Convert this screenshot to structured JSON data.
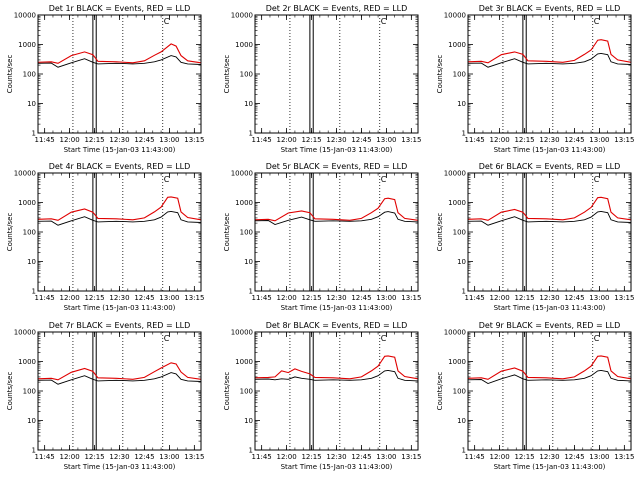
{
  "colors": {
    "background": "#ffffff",
    "axes": "#000000",
    "events": "#000000",
    "lld": "#e00000"
  },
  "chart_data": [
    {
      "type": "line",
      "title": "Det 1r BLACK = Events, RED = LLD",
      "xlabel": "Start Time (15-Jan-03 11:43:00)",
      "ylabel": "Counts/sec",
      "yscale": "log",
      "ylim": [
        1,
        10000
      ],
      "xlim_minutes": [
        -2,
        96
      ],
      "x_ticks": [
        "11:45",
        "12:00",
        "12:15",
        "12:30",
        "12:45",
        "13:00",
        "13:15"
      ],
      "y_ticks": [
        "1",
        "10",
        "100",
        "1000",
        "10000"
      ],
      "markers": [
        "C"
      ],
      "series": [
        {
          "x": [
            -2,
            6,
            10,
            18,
            26,
            31,
            34,
            45,
            55,
            62,
            68,
            72,
            78,
            81,
            84,
            88,
            96
          ],
          "values": [
            250,
            260,
            230,
            420,
            560,
            450,
            270,
            260,
            240,
            280,
            430,
            560,
            1050,
            880,
            420,
            280,
            240
          ]
        },
        {
          "x": [
            -2,
            6,
            10,
            18,
            26,
            31,
            34,
            45,
            55,
            62,
            68,
            72,
            78,
            81,
            84,
            88,
            96
          ],
          "values": [
            230,
            235,
            170,
            240,
            330,
            250,
            220,
            230,
            220,
            230,
            260,
            300,
            420,
            380,
            250,
            220,
            210
          ]
        }
      ],
      "dotted_x": [
        19,
        49,
        73
      ],
      "solid_band": [
        31,
        33
      ]
    },
    {
      "type": "line",
      "title": "Det 2r BLACK = Events, RED = LLD",
      "xlabel": "Start Time (15-Jan-03 11:43:00)",
      "ylabel": "Counts/sec",
      "yscale": "log",
      "ylim": [
        1,
        10000
      ],
      "xlim_minutes": [
        -2,
        96
      ],
      "x_ticks": [
        "11:45",
        "12:00",
        "12:15",
        "12:30",
        "12:45",
        "13:00",
        "13:15"
      ],
      "y_ticks": [
        "1",
        "10",
        "100",
        "1000",
        "10000"
      ],
      "markers": [
        "C"
      ],
      "series": [],
      "dotted_x": [
        19,
        49,
        73
      ],
      "solid_band": [
        31,
        33
      ]
    },
    {
      "type": "line",
      "title": "Det 3r BLACK = Events, RED = LLD",
      "xlabel": "Start Time (15-Jan-03 11:43:00)",
      "ylabel": "Counts/sec",
      "yscale": "log",
      "ylim": [
        1,
        10000
      ],
      "xlim_minutes": [
        -2,
        96
      ],
      "x_ticks": [
        "11:45",
        "12:00",
        "12:15",
        "12:30",
        "12:45",
        "13:00",
        "13:15"
      ],
      "y_ticks": [
        "1",
        "10",
        "100",
        "1000",
        "10000"
      ],
      "markers": [
        "C"
      ],
      "series": [
        {
          "x": [
            -2,
            6,
            10,
            18,
            26,
            31,
            34,
            45,
            55,
            62,
            68,
            72,
            76,
            78,
            82,
            84,
            88,
            96
          ],
          "values": [
            260,
            270,
            240,
            450,
            560,
            460,
            280,
            270,
            250,
            290,
            460,
            650,
            1400,
            1450,
            1300,
            460,
            300,
            250
          ]
        },
        {
          "x": [
            -2,
            6,
            10,
            18,
            26,
            31,
            34,
            45,
            55,
            62,
            68,
            72,
            76,
            78,
            82,
            84,
            88,
            96
          ],
          "values": [
            230,
            235,
            170,
            240,
            330,
            250,
            220,
            230,
            220,
            230,
            260,
            320,
            480,
            500,
            450,
            260,
            220,
            210
          ]
        }
      ],
      "dotted_x": [
        19,
        49,
        73
      ],
      "solid_band": [
        31,
        33
      ]
    },
    {
      "type": "line",
      "title": "Det 4r BLACK = Events, RED = LLD",
      "xlabel": "Start Time (15-Jan-03 11:43:00)",
      "ylabel": "Counts/sec",
      "yscale": "log",
      "ylim": [
        1,
        10000
      ],
      "xlim_minutes": [
        -2,
        96
      ],
      "x_ticks": [
        "11:45",
        "12:00",
        "12:15",
        "12:30",
        "12:45",
        "13:00",
        "13:15"
      ],
      "y_ticks": [
        "1",
        "10",
        "100",
        "1000",
        "10000"
      ],
      "markers": [
        "C"
      ],
      "series": [
        {
          "x": [
            -2,
            6,
            10,
            18,
            26,
            31,
            34,
            45,
            55,
            62,
            68,
            72,
            76,
            78,
            82,
            84,
            88,
            96
          ],
          "values": [
            270,
            280,
            250,
            470,
            600,
            470,
            290,
            280,
            260,
            300,
            480,
            700,
            1500,
            1550,
            1400,
            480,
            310,
            260
          ]
        },
        {
          "x": [
            -2,
            6,
            10,
            18,
            26,
            31,
            34,
            45,
            55,
            62,
            68,
            72,
            76,
            78,
            82,
            84,
            88,
            96
          ],
          "values": [
            230,
            235,
            170,
            240,
            330,
            250,
            220,
            230,
            220,
            230,
            260,
            320,
            480,
            500,
            450,
            260,
            220,
            210
          ]
        }
      ],
      "dotted_x": [
        19,
        49,
        73
      ],
      "solid_band": [
        31,
        33
      ]
    },
    {
      "type": "line",
      "title": "Det 5r BLACK = Events, RED = LLD",
      "xlabel": "Start Time (15-Jan-03 11:43:00)",
      "ylabel": "Counts/sec",
      "yscale": "log",
      "ylim": [
        1,
        10000
      ],
      "xlim_minutes": [
        -2,
        96
      ],
      "x_ticks": [
        "11:45",
        "12:00",
        "12:15",
        "12:30",
        "12:45",
        "13:00",
        "13:15"
      ],
      "y_ticks": [
        "1",
        "10",
        "100",
        "1000",
        "10000"
      ],
      "markers": [
        "C"
      ],
      "series": [
        {
          "x": [
            -2,
            6,
            10,
            18,
            26,
            31,
            34,
            45,
            55,
            62,
            68,
            72,
            76,
            78,
            82,
            84,
            88,
            96
          ],
          "values": [
            260,
            270,
            240,
            440,
            520,
            450,
            280,
            270,
            250,
            290,
            450,
            640,
            1350,
            1400,
            1250,
            450,
            290,
            250
          ]
        },
        {
          "x": [
            -2,
            6,
            10,
            18,
            26,
            31,
            34,
            45,
            55,
            62,
            68,
            72,
            76,
            78,
            82,
            84,
            88,
            96
          ],
          "values": [
            240,
            245,
            180,
            250,
            320,
            260,
            230,
            240,
            230,
            240,
            270,
            330,
            470,
            490,
            440,
            270,
            230,
            220
          ]
        }
      ],
      "dotted_x": [
        19,
        49,
        73
      ],
      "solid_band": [
        31,
        33
      ]
    },
    {
      "type": "line",
      "title": "Det 6r BLACK = Events, RED = LLD",
      "xlabel": "Start Time (15-Jan-03 11:43:00)",
      "ylabel": "Counts/sec",
      "yscale": "log",
      "ylim": [
        1,
        10000
      ],
      "xlim_minutes": [
        -2,
        96
      ],
      "x_ticks": [
        "11:45",
        "12:00",
        "12:15",
        "12:30",
        "12:45",
        "13:00",
        "13:15"
      ],
      "y_ticks": [
        "1",
        "10",
        "100",
        "1000",
        "10000"
      ],
      "markers": [
        "C"
      ],
      "series": [
        {
          "x": [
            -2,
            6,
            10,
            18,
            26,
            31,
            34,
            45,
            55,
            62,
            68,
            72,
            76,
            78,
            82,
            84,
            88,
            96
          ],
          "values": [
            270,
            280,
            250,
            470,
            580,
            470,
            290,
            280,
            260,
            300,
            470,
            680,
            1450,
            1500,
            1350,
            470,
            300,
            260
          ]
        },
        {
          "x": [
            -2,
            6,
            10,
            18,
            26,
            31,
            34,
            45,
            55,
            62,
            68,
            72,
            76,
            78,
            82,
            84,
            88,
            96
          ],
          "values": [
            230,
            235,
            170,
            240,
            330,
            250,
            220,
            230,
            220,
            230,
            260,
            320,
            480,
            500,
            450,
            260,
            220,
            210
          ]
        }
      ],
      "dotted_x": [
        19,
        49,
        73
      ],
      "solid_band": [
        31,
        33
      ]
    },
    {
      "type": "line",
      "title": "Det 7r BLACK = Events, RED = LLD",
      "xlabel": "Start Time (15-Jan-03 11:43:00)",
      "ylabel": "Counts/sec",
      "yscale": "log",
      "ylim": [
        1,
        10000
      ],
      "xlim_minutes": [
        -2,
        96
      ],
      "x_ticks": [
        "11:45",
        "12:00",
        "12:15",
        "12:30",
        "12:45",
        "13:00",
        "13:15"
      ],
      "y_ticks": [
        "1",
        "10",
        "100",
        "1000",
        "10000"
      ],
      "markers": [
        "C"
      ],
      "series": [
        {
          "x": [
            -2,
            6,
            10,
            18,
            26,
            31,
            34,
            45,
            55,
            62,
            68,
            72,
            78,
            81,
            84,
            88,
            96
          ],
          "values": [
            260,
            270,
            240,
            430,
            580,
            460,
            280,
            270,
            250,
            290,
            450,
            600,
            900,
            820,
            440,
            290,
            250
          ]
        },
        {
          "x": [
            -2,
            6,
            10,
            18,
            26,
            31,
            34,
            45,
            55,
            62,
            68,
            72,
            78,
            81,
            84,
            88,
            96
          ],
          "values": [
            230,
            235,
            170,
            240,
            330,
            250,
            220,
            230,
            220,
            230,
            260,
            300,
            420,
            380,
            250,
            220,
            210
          ]
        }
      ],
      "dotted_x": [
        19,
        49,
        73
      ],
      "solid_band": [
        31,
        33
      ]
    },
    {
      "type": "line",
      "title": "Det 8r BLACK = Events, RED = LLD",
      "xlabel": "Start Time (15-Jan-03 11:43:00)",
      "ylabel": "Counts/sec",
      "yscale": "log",
      "ylim": [
        1,
        10000
      ],
      "xlim_minutes": [
        -2,
        96
      ],
      "x_ticks": [
        "11:45",
        "12:00",
        "12:15",
        "12:30",
        "12:45",
        "13:00",
        "13:15"
      ],
      "y_ticks": [
        "1",
        "10",
        "100",
        "1000",
        "10000"
      ],
      "markers": [
        "C"
      ],
      "series": [
        {
          "x": [
            -2,
            6,
            10,
            14,
            18,
            22,
            26,
            31,
            34,
            45,
            55,
            62,
            68,
            72,
            76,
            78,
            82,
            84,
            88,
            96
          ],
          "values": [
            280,
            290,
            300,
            480,
            420,
            560,
            460,
            380,
            290,
            280,
            260,
            300,
            480,
            700,
            1500,
            1550,
            1400,
            480,
            310,
            260
          ]
        },
        {
          "x": [
            -2,
            6,
            10,
            14,
            18,
            22,
            26,
            31,
            34,
            45,
            55,
            62,
            68,
            72,
            76,
            78,
            82,
            84,
            88,
            96
          ],
          "values": [
            250,
            255,
            240,
            260,
            250,
            300,
            270,
            250,
            230,
            240,
            230,
            240,
            270,
            330,
            480,
            500,
            450,
            270,
            230,
            220
          ]
        }
      ],
      "dotted_x": [
        19,
        49,
        73
      ],
      "solid_band": [
        31,
        33
      ]
    },
    {
      "type": "line",
      "title": "Det 9r BLACK = Events, RED = LLD",
      "xlabel": "Start Time (15-Jan-03 11:43:00)",
      "ylabel": "Counts/sec",
      "yscale": "log",
      "ylim": [
        1,
        10000
      ],
      "xlim_minutes": [
        -2,
        96
      ],
      "x_ticks": [
        "11:45",
        "12:00",
        "12:15",
        "12:30",
        "12:45",
        "13:00",
        "13:15"
      ],
      "y_ticks": [
        "1",
        "10",
        "100",
        "1000",
        "10000"
      ],
      "markers": [
        "C"
      ],
      "series": [
        {
          "x": [
            -2,
            6,
            10,
            18,
            26,
            31,
            34,
            45,
            55,
            62,
            68,
            72,
            76,
            78,
            82,
            84,
            88,
            96
          ],
          "values": [
            270,
            280,
            250,
            470,
            600,
            470,
            290,
            280,
            260,
            300,
            480,
            700,
            1500,
            1550,
            1400,
            480,
            310,
            260
          ]
        },
        {
          "x": [
            -2,
            6,
            10,
            18,
            26,
            31,
            34,
            45,
            55,
            62,
            68,
            72,
            76,
            78,
            82,
            84,
            88,
            96
          ],
          "values": [
            240,
            245,
            180,
            260,
            350,
            260,
            230,
            240,
            230,
            240,
            270,
            330,
            480,
            500,
            450,
            270,
            230,
            220
          ]
        }
      ],
      "dotted_x": [
        19,
        49,
        73
      ],
      "solid_band": [
        31,
        33
      ]
    }
  ]
}
